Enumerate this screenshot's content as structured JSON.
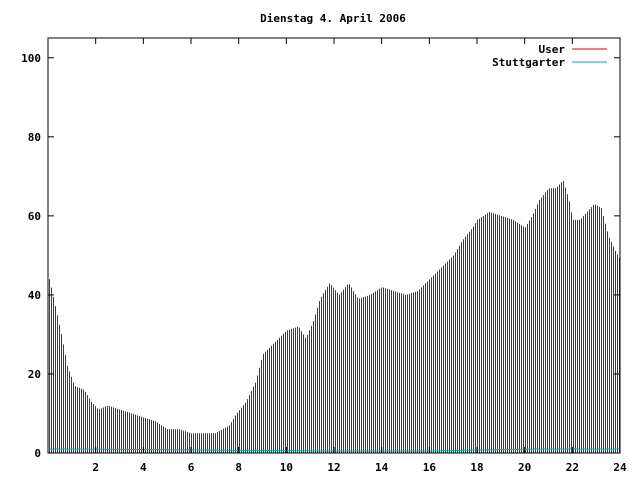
{
  "chart_data": {
    "type": "bar",
    "title": "Dienstag 4. April 2006",
    "xlabel": "",
    "ylabel": "",
    "xlim": [
      0,
      24
    ],
    "ylim": [
      0,
      105
    ],
    "x_ticks": [
      2,
      4,
      6,
      8,
      10,
      12,
      14,
      16,
      18,
      20,
      22,
      24
    ],
    "y_ticks": [
      0,
      20,
      40,
      60,
      80,
      100
    ],
    "legend_position": "top-right",
    "series": [
      {
        "name": "User",
        "color": "#cc0000",
        "knots": [
          [
            0.05,
            44
          ],
          [
            0.3,
            37
          ],
          [
            0.55,
            30
          ],
          [
            0.8,
            22
          ],
          [
            1.1,
            17
          ],
          [
            1.5,
            16
          ],
          [
            1.8,
            13
          ],
          [
            2.1,
            11
          ],
          [
            2.5,
            12
          ],
          [
            3.0,
            11
          ],
          [
            3.5,
            10
          ],
          [
            4.0,
            9
          ],
          [
            4.5,
            8
          ],
          [
            5.0,
            6
          ],
          [
            5.5,
            6
          ],
          [
            6.0,
            5
          ],
          [
            6.5,
            5
          ],
          [
            7.0,
            5
          ],
          [
            7.3,
            6
          ],
          [
            7.6,
            7
          ],
          [
            7.9,
            10
          ],
          [
            8.3,
            13
          ],
          [
            8.7,
            18
          ],
          [
            9.0,
            25
          ],
          [
            9.5,
            28
          ],
          [
            10.0,
            31
          ],
          [
            10.5,
            32
          ],
          [
            10.8,
            29
          ],
          [
            11.1,
            33
          ],
          [
            11.4,
            39
          ],
          [
            11.8,
            43
          ],
          [
            12.2,
            40
          ],
          [
            12.6,
            43
          ],
          [
            13.0,
            39
          ],
          [
            13.5,
            40
          ],
          [
            14.0,
            42
          ],
          [
            14.5,
            41
          ],
          [
            15.0,
            40
          ],
          [
            15.5,
            41
          ],
          [
            16.0,
            44
          ],
          [
            16.5,
            47
          ],
          [
            17.0,
            50
          ],
          [
            17.4,
            54
          ],
          [
            17.8,
            57
          ],
          [
            18.0,
            59
          ],
          [
            18.5,
            61
          ],
          [
            19.0,
            60
          ],
          [
            19.5,
            59
          ],
          [
            20.0,
            57
          ],
          [
            20.3,
            60
          ],
          [
            20.6,
            64
          ],
          [
            21.0,
            67
          ],
          [
            21.3,
            67
          ],
          [
            21.6,
            69
          ],
          [
            21.85,
            64
          ],
          [
            22.0,
            59
          ],
          [
            22.3,
            59
          ],
          [
            22.6,
            61
          ],
          [
            22.9,
            63
          ],
          [
            23.2,
            62
          ],
          [
            23.5,
            55
          ],
          [
            23.8,
            51
          ],
          [
            24.0,
            49
          ]
        ]
      },
      {
        "name": "Stuttgarter",
        "color": "#00aaaa",
        "knots": [
          [
            0.05,
            1
          ],
          [
            1.1,
            1
          ],
          [
            11.6,
            0.5
          ],
          [
            16.0,
            0.5
          ],
          [
            20.5,
            1
          ],
          [
            24.0,
            1
          ]
        ]
      }
    ]
  }
}
